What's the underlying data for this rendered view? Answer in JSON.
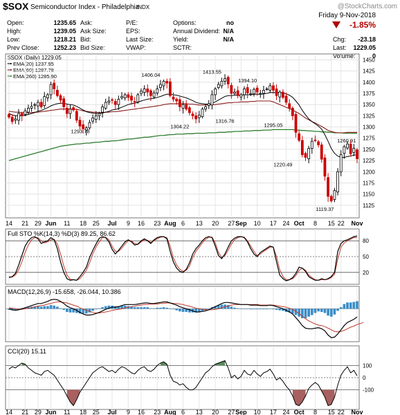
{
  "header": {
    "symbol": "$SOX",
    "name": "Semiconductor Index - Philadelphia",
    "exchange": "INDX",
    "watermark": "@StockCharts.com",
    "date": "Friday  9-Nov-2018",
    "change_pct": "-1.85%",
    "stats": [
      {
        "label": "Open:",
        "value": "1235.65"
      },
      {
        "label": "High:",
        "value": "1239.05"
      },
      {
        "label": "Low:",
        "value": "1218.21"
      },
      {
        "label": "Prev Close:",
        "value": "1252.23"
      },
      {
        "label": "Ask:",
        "value": ""
      },
      {
        "label": "Ask Size:",
        "value": ""
      },
      {
        "label": "Bid:",
        "value": ""
      },
      {
        "label": "Bid Size:",
        "value": ""
      },
      {
        "label": "P/E:",
        "value": ""
      },
      {
        "label": "EPS:",
        "value": ""
      },
      {
        "label": "Last Size:",
        "value": ""
      },
      {
        "label": "VWAP:",
        "value": ""
      },
      {
        "label": "Options:",
        "value": "no"
      },
      {
        "label": "Annual Dividend:",
        "value": "N/A"
      },
      {
        "label": "Yield:",
        "value": "N/A"
      },
      {
        "label": "SCTR:",
        "value": ""
      },
      {
        "label": "Chg:",
        "value": "-23.18"
      },
      {
        "label": "Last:",
        "value": "1229.05"
      },
      {
        "label": "Volume:",
        "value": "0"
      }
    ]
  },
  "colors": {
    "up": "#ffffff",
    "down": "#cc0000",
    "ema20": "#000000",
    "ema60": "#8b1a1a",
    "ema260": "#2e7d2e",
    "sto_k": "#000000",
    "sto_d": "#c0392b",
    "macd_hist": "#3a8ec9",
    "cci_fill_pos": "#5b8a5b",
    "cci_fill_neg": "#a86060"
  },
  "chart_data": [
    {
      "type": "candlestick",
      "title": "$SOX (Daily) 1229.05",
      "legend": [
        "EMA(20) 1237.95",
        "EMA(60) 1287.78",
        "EMA(260) 1285.90"
      ],
      "ylim": [
        1100,
        1460
      ],
      "yticks": [
        1125,
        1150,
        1175,
        1200,
        1225,
        1250,
        1275,
        1300,
        1325,
        1350,
        1375,
        1400,
        1425,
        1450
      ],
      "x_tick_labels": [
        "14",
        "21",
        "29",
        "Jun",
        "11",
        "18",
        "25",
        "Jul",
        "9",
        "16",
        "23",
        "Aug",
        "6",
        "13",
        "20",
        "27",
        "Sep",
        "10",
        "17",
        "24",
        "Oct",
        "8",
        "15",
        "22",
        "Nov"
      ],
      "annotations": [
        "1293.78",
        "1406.04",
        "1413.55",
        "1394.10",
        "1304.22",
        "1316.76",
        "1295.05",
        "1260.91",
        "1220.49",
        "1119.37"
      ],
      "close": [
        1322,
        1312,
        1318,
        1330,
        1325,
        1336,
        1342,
        1346,
        1350,
        1355,
        1345,
        1368,
        1372,
        1395,
        1385,
        1370,
        1360,
        1345,
        1330,
        1340,
        1338,
        1315,
        1302,
        1296,
        1298,
        1310,
        1320,
        1325,
        1330,
        1345,
        1355,
        1358,
        1360,
        1350,
        1362,
        1368,
        1372,
        1366,
        1360,
        1356,
        1372,
        1380,
        1385,
        1378,
        1370,
        1376,
        1385,
        1395,
        1402,
        1398,
        1370,
        1362,
        1358,
        1345,
        1350,
        1340,
        1332,
        1325,
        1318,
        1326,
        1340,
        1345,
        1352,
        1372,
        1385,
        1395,
        1402,
        1408,
        1396,
        1375,
        1378,
        1370,
        1372,
        1385,
        1376,
        1374,
        1384,
        1378,
        1375,
        1382,
        1385,
        1392,
        1382,
        1370,
        1378,
        1366,
        1355,
        1342,
        1325,
        1288,
        1270,
        1238,
        1232,
        1252,
        1268,
        1270,
        1260,
        1228,
        1190,
        1145,
        1135,
        1158,
        1200,
        1238,
        1256,
        1262,
        1240,
        1252,
        1229
      ],
      "ema20": [
        1330,
        1327,
        1325,
        1325,
        1325,
        1326,
        1328,
        1330,
        1332,
        1335,
        1337,
        1340,
        1343,
        1347,
        1350,
        1352,
        1353,
        1353,
        1351,
        1350,
        1349,
        1346,
        1342,
        1338,
        1334,
        1332,
        1331,
        1330,
        1330,
        1331,
        1333,
        1335,
        1338,
        1339,
        1341,
        1344,
        1347,
        1350,
        1352,
        1353,
        1355,
        1358,
        1360,
        1362,
        1363,
        1364,
        1366,
        1368,
        1371,
        1373,
        1373,
        1372,
        1371,
        1369,
        1367,
        1365,
        1362,
        1359,
        1355,
        1353,
        1352,
        1351,
        1351,
        1353,
        1356,
        1360,
        1364,
        1368,
        1370,
        1370,
        1371,
        1371,
        1371,
        1372,
        1372,
        1372,
        1373,
        1373,
        1373,
        1374,
        1375,
        1377,
        1377,
        1377,
        1377,
        1376,
        1374,
        1371,
        1366,
        1358,
        1349,
        1337,
        1327,
        1318,
        1312,
        1307,
        1302,
        1295,
        1283,
        1268,
        1252,
        1241,
        1235,
        1232,
        1232,
        1234,
        1235,
        1237,
        1238
      ],
      "ema60": [
        1335,
        1334,
        1333,
        1333,
        1332,
        1332,
        1332,
        1332,
        1333,
        1333,
        1334,
        1335,
        1336,
        1337,
        1338,
        1339,
        1340,
        1340,
        1340,
        1340,
        1340,
        1339,
        1338,
        1336,
        1335,
        1334,
        1333,
        1333,
        1332,
        1332,
        1333,
        1333,
        1334,
        1334,
        1335,
        1336,
        1337,
        1338,
        1339,
        1340,
        1341,
        1342,
        1343,
        1344,
        1345,
        1346,
        1347,
        1348,
        1350,
        1351,
        1352,
        1352,
        1352,
        1352,
        1352,
        1352,
        1351,
        1351,
        1350,
        1349,
        1349,
        1349,
        1349,
        1350,
        1350,
        1351,
        1352,
        1353,
        1354,
        1354,
        1355,
        1355,
        1356,
        1356,
        1356,
        1357,
        1357,
        1358,
        1358,
        1358,
        1358,
        1358,
        1356,
        1353,
        1350,
        1347,
        1344,
        1341,
        1338,
        1334,
        1330,
        1325,
        1320,
        1316,
        1312,
        1309,
        1305,
        1301,
        1297,
        1292,
        1290,
        1288,
        1287,
        1287,
        1287,
        1288,
        1288,
        1288,
        1288
      ],
      "ema260": [
        1225,
        1227,
        1229,
        1231,
        1233,
        1235,
        1237,
        1239,
        1241,
        1243,
        1245,
        1247,
        1249,
        1251,
        1253,
        1255,
        1257,
        1258,
        1259,
        1260,
        1261,
        1262,
        1262,
        1263,
        1264,
        1264,
        1265,
        1266,
        1266,
        1267,
        1268,
        1268,
        1269,
        1269,
        1270,
        1271,
        1272,
        1273,
        1273,
        1274,
        1275,
        1276,
        1277,
        1277,
        1278,
        1279,
        1280,
        1281,
        1281,
        1282,
        1283,
        1283,
        1284,
        1284,
        1284,
        1285,
        1285,
        1285,
        1286,
        1286,
        1286,
        1286,
        1287,
        1287,
        1287,
        1288,
        1288,
        1288,
        1289,
        1289,
        1290,
        1290,
        1290,
        1291,
        1291,
        1291,
        1292,
        1292,
        1292,
        1293,
        1293,
        1293,
        1294,
        1294,
        1294,
        1294,
        1294,
        1294,
        1294,
        1293,
        1293,
        1292,
        1292,
        1291,
        1291,
        1290,
        1290,
        1289,
        1289,
        1288,
        1288,
        1287,
        1287,
        1287,
        1286,
        1286,
        1286,
        1286,
        1286
      ]
    },
    {
      "type": "line",
      "title": "Full STO %K(14,3) %D(3) 89.25, 86.62",
      "ylim": [
        0,
        100
      ],
      "yticks": [
        20,
        50,
        80
      ],
      "series": [
        {
          "name": "%K",
          "values": [
            10,
            12,
            18,
            34,
            52,
            70,
            80,
            86,
            88,
            84,
            75,
            78,
            80,
            86,
            82,
            65,
            40,
            20,
            8,
            5,
            6,
            5,
            12,
            20,
            30,
            48,
            62,
            74,
            85,
            88,
            86,
            78,
            64,
            55,
            62,
            70,
            78,
            82,
            78,
            72,
            74,
            80,
            84,
            80,
            75,
            82,
            86,
            88,
            88,
            84,
            60,
            40,
            28,
            22,
            20,
            26,
            38,
            55,
            65,
            72,
            80,
            86,
            88,
            86,
            70,
            52,
            46,
            55,
            68,
            80,
            85,
            88,
            88,
            86,
            78,
            65,
            55,
            50,
            58,
            62,
            66,
            70,
            68,
            40,
            15,
            8,
            4,
            6,
            10,
            18,
            30,
            28,
            22,
            12,
            8,
            5,
            5,
            8,
            6,
            8,
            12,
            20,
            60,
            75,
            80,
            82,
            85,
            88,
            89.25
          ]
        },
        {
          "name": "%D",
          "values": [
            12,
            11,
            15,
            25,
            40,
            58,
            72,
            82,
            86,
            86,
            80,
            76,
            78,
            82,
            83,
            74,
            55,
            32,
            15,
            7,
            6,
            5,
            8,
            15,
            24,
            38,
            55,
            68,
            78,
            86,
            87,
            82,
            70,
            60,
            60,
            66,
            74,
            80,
            80,
            75,
            73,
            78,
            82,
            81,
            77,
            80,
            84,
            87,
            88,
            86,
            70,
            48,
            34,
            26,
            22,
            24,
            32,
            48,
            60,
            68,
            76,
            83,
            87,
            87,
            76,
            58,
            48,
            52,
            62,
            74,
            82,
            86,
            88,
            87,
            80,
            70,
            60,
            52,
            55,
            60,
            64,
            68,
            68,
            50,
            25,
            12,
            6,
            6,
            8,
            14,
            24,
            28,
            24,
            15,
            10,
            6,
            5,
            6,
            6,
            7,
            10,
            16,
            45,
            68,
            76,
            80,
            83,
            86,
            86.62
          ]
        }
      ]
    },
    {
      "type": "line",
      "title": "MACD(12,26,9) -15.658, -26.044, 10.386",
      "ylim": [
        -60,
        40
      ],
      "series": [
        {
          "name": "MACD",
          "values": [
            0,
            -2,
            -3,
            -2,
            0,
            2,
            4,
            6,
            8,
            10,
            10,
            12,
            14,
            17,
            18,
            17,
            14,
            10,
            5,
            2,
            0,
            -3,
            -7,
            -10,
            -12,
            -12,
            -11,
            -9,
            -7,
            -4,
            -1,
            1,
            3,
            3,
            4,
            6,
            8,
            8,
            8,
            8,
            9,
            10,
            11,
            11,
            10,
            10,
            11,
            12,
            13,
            13,
            11,
            9,
            7,
            4,
            2,
            0,
            -2,
            -4,
            -6,
            -6,
            -5,
            -4,
            -2,
            1,
            4,
            7,
            10,
            12,
            12,
            11,
            10,
            9,
            8,
            8,
            8,
            7,
            7,
            7,
            6,
            6,
            6,
            7,
            6,
            4,
            2,
            0,
            -3,
            -6,
            -10,
            -17,
            -24,
            -32,
            -37,
            -38,
            -38,
            -37,
            -36,
            -38,
            -42,
            -50,
            -55,
            -54,
            -48,
            -40,
            -32,
            -26,
            -23,
            -20,
            -15.658
          ]
        },
        {
          "name": "Signal",
          "values": [
            2,
            1,
            0,
            -1,
            -1,
            0,
            1,
            2,
            4,
            5,
            6,
            7,
            9,
            10,
            12,
            13,
            13,
            12,
            11,
            9,
            7,
            5,
            2,
            -1,
            -3,
            -5,
            -7,
            -8,
            -8,
            -7,
            -6,
            -5,
            -3,
            -2,
            -1,
            0,
            2,
            3,
            4,
            5,
            6,
            7,
            8,
            8,
            9,
            9,
            9,
            10,
            10,
            11,
            11,
            10,
            10,
            9,
            8,
            6,
            5,
            3,
            1,
            0,
            -1,
            -2,
            -2,
            -2,
            -1,
            0,
            2,
            4,
            5,
            7,
            8,
            8,
            8,
            8,
            8,
            8,
            8,
            8,
            7,
            7,
            7,
            7,
            7,
            6,
            5,
            4,
            3,
            1,
            -1,
            -5,
            -9,
            -14,
            -19,
            -23,
            -26,
            -29,
            -31,
            -32,
            -34,
            -37,
            -40,
            -43,
            -44,
            -43,
            -41,
            -38,
            -35,
            -33,
            -30,
            -28,
            -26.044
          ]
        }
      ]
    },
    {
      "type": "line",
      "title": "CCI(20) 15.11",
      "ylim": [
        -250,
        250
      ],
      "yticks": [
        100,
        0,
        -100
      ],
      "series": [
        {
          "name": "CCI",
          "values": [
            70,
            90,
            80,
            100,
            120,
            110,
            80,
            60,
            40,
            30,
            20,
            50,
            60,
            40,
            20,
            -20,
            -60,
            -100,
            -150,
            -200,
            -230,
            -180,
            -120,
            -80,
            -40,
            0,
            40,
            60,
            80,
            90,
            70,
            50,
            60,
            40,
            70,
            90,
            80,
            60,
            40,
            30,
            60,
            80,
            90,
            60,
            50,
            70,
            100,
            120,
            130,
            110,
            20,
            -30,
            -40,
            -60,
            -50,
            -80,
            -100,
            -100,
            -80,
            -40,
            0,
            40,
            60,
            90,
            110,
            120,
            130,
            140,
            80,
            0,
            20,
            -10,
            10,
            60,
            30,
            20,
            60,
            30,
            10,
            40,
            50,
            70,
            30,
            -20,
            0,
            -30,
            -70,
            -100,
            -150,
            -220,
            -230,
            -200,
            -150,
            -90,
            -60,
            -40,
            -60,
            -110,
            -160,
            -230,
            -220,
            -160,
            -60,
            20,
            60,
            90,
            40,
            60,
            15.11
          ]
        }
      ]
    }
  ]
}
